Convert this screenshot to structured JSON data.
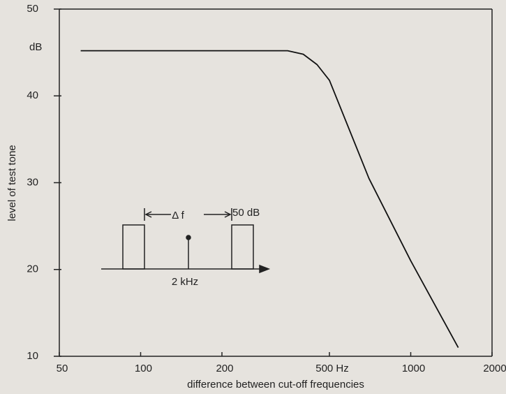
{
  "chart_data": {
    "type": "line",
    "x_label": "difference between cut-off frequencies",
    "y_label": "level of test tone",
    "annotations": [
      "dB",
      "Δ f",
      "50 dB",
      "2 kHz"
    ],
    "x": [
      60,
      350,
      400,
      450,
      500,
      700,
      1000,
      1500
    ],
    "values": [
      45.2,
      45.2,
      44.8,
      43.6,
      41.8,
      30.5,
      21,
      11
    ],
    "color": "#111111",
    "log_x": true,
    "xlim": [
      50,
      2000
    ],
    "xticks": [
      50,
      100,
      200,
      {
        "value": 500,
        "label": "500 Hz"
      },
      1000,
      2000
    ],
    "ylim": [
      10,
      50
    ],
    "yticks": [
      10,
      20,
      30,
      40,
      50
    ]
  }
}
